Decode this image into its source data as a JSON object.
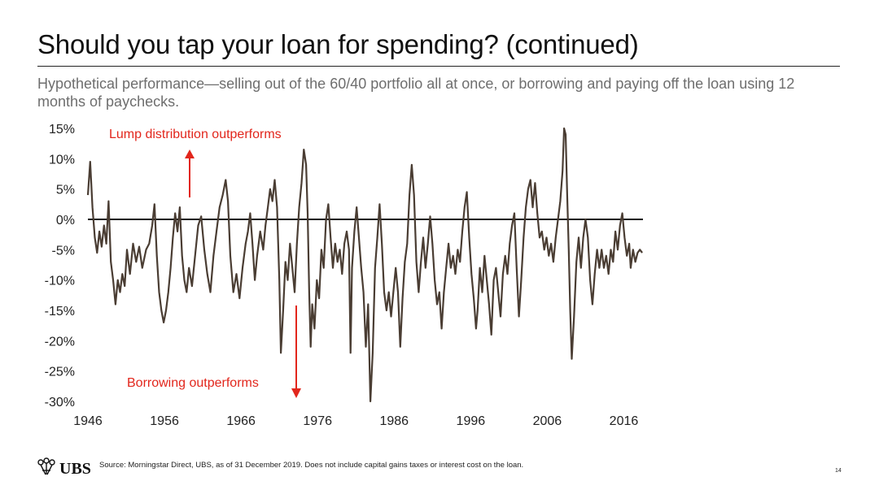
{
  "title": "Should you tap your loan for spending? (continued)",
  "subtitle": "Hypothetical performance—selling out of the 60/40 portfolio all at once, or borrowing and paying off the loan using 12 months of paychecks.",
  "footer": {
    "brand": "UBS",
    "source": "Source: Morningstar Direct, UBS, as of 31 December 2019. Does not include capital gains taxes or interest cost on the loan.",
    "page_number": "14"
  },
  "colors": {
    "series": "#4a3d33",
    "annotation": "#e2261c",
    "zero_line": "#111111"
  },
  "chart_data": {
    "type": "line",
    "title": "",
    "xlabel": "",
    "ylabel": "",
    "xlim": [
      1946,
      2018.5
    ],
    "ylim": [
      -30,
      15
    ],
    "y_ticks": [
      15,
      10,
      5,
      0,
      -5,
      -10,
      -15,
      -20,
      -25,
      -30
    ],
    "y_tick_labels": [
      "15%",
      "10%",
      "5%",
      "0%",
      "-5%",
      "-10%",
      "-15%",
      "-20%",
      "-25%",
      "-30%"
    ],
    "x_ticks": [
      1946,
      1956,
      1966,
      1976,
      1986,
      1996,
      2006,
      2016
    ],
    "x_tick_labels": [
      "1946",
      "1956",
      "1966",
      "1976",
      "1986",
      "1996",
      "2006",
      "2016"
    ],
    "reference_line": 0,
    "annotations": [
      {
        "text": "Lump distribution outperforms",
        "direction": "up"
      },
      {
        "text": "Borrowing outperforms",
        "direction": "down"
      }
    ],
    "series": [
      {
        "values": [
          [
            1946.0,
            4.0
          ],
          [
            1946.3,
            9.5
          ],
          [
            1946.6,
            2.0
          ],
          [
            1946.9,
            -3.0
          ],
          [
            1947.2,
            -5.5
          ],
          [
            1947.5,
            -2.0
          ],
          [
            1947.8,
            -4.5
          ],
          [
            1948.1,
            -1.0
          ],
          [
            1948.4,
            -4.0
          ],
          [
            1948.7,
            3.0
          ],
          [
            1949.0,
            -7.0
          ],
          [
            1949.3,
            -10.0
          ],
          [
            1949.6,
            -14.0
          ],
          [
            1949.9,
            -10.0
          ],
          [
            1950.2,
            -12.0
          ],
          [
            1950.5,
            -9.0
          ],
          [
            1950.8,
            -11.0
          ],
          [
            1951.1,
            -5.0
          ],
          [
            1951.5,
            -9.0
          ],
          [
            1951.9,
            -4.0
          ],
          [
            1952.3,
            -7.0
          ],
          [
            1952.7,
            -4.5
          ],
          [
            1953.1,
            -8.0
          ],
          [
            1953.6,
            -5.0
          ],
          [
            1954.0,
            -4.0
          ],
          [
            1954.4,
            -1.0
          ],
          [
            1954.7,
            2.5
          ],
          [
            1955.0,
            -6.0
          ],
          [
            1955.3,
            -12.0
          ],
          [
            1955.6,
            -15.0
          ],
          [
            1955.9,
            -17.0
          ],
          [
            1956.2,
            -15.0
          ],
          [
            1956.5,
            -12.0
          ],
          [
            1956.8,
            -8.0
          ],
          [
            1957.1,
            -3.0
          ],
          [
            1957.4,
            1.0
          ],
          [
            1957.7,
            -2.0
          ],
          [
            1958.0,
            2.0
          ],
          [
            1958.3,
            -6.0
          ],
          [
            1958.6,
            -10.0
          ],
          [
            1958.9,
            -12.0
          ],
          [
            1959.2,
            -8.0
          ],
          [
            1959.6,
            -11.0
          ],
          [
            1960.0,
            -6.0
          ],
          [
            1960.4,
            -1.0
          ],
          [
            1960.8,
            0.5
          ],
          [
            1961.2,
            -5.0
          ],
          [
            1961.6,
            -9.0
          ],
          [
            1962.0,
            -12.0
          ],
          [
            1962.4,
            -6.0
          ],
          [
            1962.8,
            -2.0
          ],
          [
            1963.2,
            2.0
          ],
          [
            1963.6,
            4.0
          ],
          [
            1964.0,
            6.5
          ],
          [
            1964.3,
            3.0
          ],
          [
            1964.6,
            -6.0
          ],
          [
            1965.0,
            -12.0
          ],
          [
            1965.4,
            -9.0
          ],
          [
            1965.8,
            -13.0
          ],
          [
            1966.2,
            -8.0
          ],
          [
            1966.6,
            -4.0
          ],
          [
            1966.9,
            -2.0
          ],
          [
            1967.2,
            1.0
          ],
          [
            1967.5,
            -4.0
          ],
          [
            1967.8,
            -10.0
          ],
          [
            1968.1,
            -6.0
          ],
          [
            1968.5,
            -2.0
          ],
          [
            1968.9,
            -5.0
          ],
          [
            1969.2,
            -1.0
          ],
          [
            1969.5,
            2.0
          ],
          [
            1969.8,
            5.0
          ],
          [
            1970.1,
            3.0
          ],
          [
            1970.4,
            6.5
          ],
          [
            1970.7,
            2.0
          ],
          [
            1971.0,
            -10.0
          ],
          [
            1971.2,
            -22.0
          ],
          [
            1971.5,
            -15.0
          ],
          [
            1971.8,
            -7.0
          ],
          [
            1972.1,
            -10.0
          ],
          [
            1972.4,
            -4.0
          ],
          [
            1972.7,
            -8.0
          ],
          [
            1973.0,
            -12.0
          ],
          [
            1973.3,
            -4.0
          ],
          [
            1973.6,
            2.0
          ],
          [
            1973.9,
            6.0
          ],
          [
            1974.2,
            11.5
          ],
          [
            1974.5,
            9.0
          ],
          [
            1974.7,
            1.0
          ],
          [
            1974.9,
            -12.0
          ],
          [
            1975.1,
            -21.0
          ],
          [
            1975.3,
            -14.0
          ],
          [
            1975.6,
            -18.0
          ],
          [
            1975.9,
            -10.0
          ],
          [
            1976.2,
            -13.0
          ],
          [
            1976.5,
            -5.0
          ],
          [
            1976.8,
            -8.0
          ],
          [
            1977.1,
            0.0
          ],
          [
            1977.4,
            2.5
          ],
          [
            1977.7,
            -3.0
          ],
          [
            1978.0,
            -8.0
          ],
          [
            1978.3,
            -4.0
          ],
          [
            1978.6,
            -7.0
          ],
          [
            1978.9,
            -5.0
          ],
          [
            1979.2,
            -9.0
          ],
          [
            1979.5,
            -4.0
          ],
          [
            1979.8,
            -2.0
          ],
          [
            1980.1,
            -5.0
          ],
          [
            1980.3,
            -22.0
          ],
          [
            1980.5,
            -8.0
          ],
          [
            1980.8,
            -2.0
          ],
          [
            1981.1,
            2.0
          ],
          [
            1981.4,
            -3.0
          ],
          [
            1981.7,
            -8.0
          ],
          [
            1982.0,
            -12.0
          ],
          [
            1982.3,
            -21.0
          ],
          [
            1982.6,
            -14.0
          ],
          [
            1982.9,
            -30.0
          ],
          [
            1983.2,
            -22.0
          ],
          [
            1983.5,
            -8.0
          ],
          [
            1983.8,
            -3.0
          ],
          [
            1984.1,
            2.5
          ],
          [
            1984.4,
            -4.0
          ],
          [
            1984.7,
            -12.0
          ],
          [
            1985.0,
            -15.0
          ],
          [
            1985.3,
            -12.0
          ],
          [
            1985.6,
            -16.0
          ],
          [
            1985.9,
            -12.0
          ],
          [
            1986.2,
            -8.0
          ],
          [
            1986.5,
            -12.0
          ],
          [
            1986.8,
            -21.0
          ],
          [
            1987.1,
            -13.0
          ],
          [
            1987.4,
            -7.0
          ],
          [
            1987.7,
            -4.0
          ],
          [
            1988.0,
            4.0
          ],
          [
            1988.3,
            9.0
          ],
          [
            1988.6,
            4.0
          ],
          [
            1988.9,
            -7.0
          ],
          [
            1989.2,
            -12.0
          ],
          [
            1989.5,
            -7.0
          ],
          [
            1989.8,
            -3.0
          ],
          [
            1990.1,
            -8.0
          ],
          [
            1990.4,
            -4.0
          ],
          [
            1990.7,
            0.5
          ],
          [
            1991.0,
            -4.0
          ],
          [
            1991.3,
            -10.0
          ],
          [
            1991.6,
            -14.0
          ],
          [
            1991.9,
            -12.0
          ],
          [
            1992.2,
            -18.0
          ],
          [
            1992.5,
            -12.0
          ],
          [
            1992.8,
            -8.0
          ],
          [
            1993.1,
            -4.0
          ],
          [
            1993.4,
            -8.0
          ],
          [
            1993.7,
            -6.0
          ],
          [
            1994.0,
            -9.0
          ],
          [
            1994.3,
            -5.0
          ],
          [
            1994.6,
            -7.0
          ],
          [
            1994.9,
            -2.0
          ],
          [
            1995.2,
            2.0
          ],
          [
            1995.5,
            4.5
          ],
          [
            1995.8,
            -3.0
          ],
          [
            1996.1,
            -9.0
          ],
          [
            1996.4,
            -13.0
          ],
          [
            1996.7,
            -18.0
          ],
          [
            1996.9,
            -15.0
          ],
          [
            1997.2,
            -8.0
          ],
          [
            1997.5,
            -12.0
          ],
          [
            1997.8,
            -6.0
          ],
          [
            1998.1,
            -10.0
          ],
          [
            1998.4,
            -14.0
          ],
          [
            1998.7,
            -19.0
          ],
          [
            1999.0,
            -10.0
          ],
          [
            1999.3,
            -8.0
          ],
          [
            1999.6,
            -12.0
          ],
          [
            1999.9,
            -16.0
          ],
          [
            2000.2,
            -9.0
          ],
          [
            2000.5,
            -6.0
          ],
          [
            2000.8,
            -9.0
          ],
          [
            2001.1,
            -4.0
          ],
          [
            2001.4,
            -1.0
          ],
          [
            2001.7,
            1.0
          ],
          [
            2002.0,
            -8.0
          ],
          [
            2002.3,
            -16.0
          ],
          [
            2002.6,
            -10.0
          ],
          [
            2002.9,
            -3.0
          ],
          [
            2003.2,
            2.0
          ],
          [
            2003.5,
            5.0
          ],
          [
            2003.8,
            6.5
          ],
          [
            2004.1,
            2.0
          ],
          [
            2004.4,
            6.0
          ],
          [
            2004.7,
            1.0
          ],
          [
            2005.0,
            -3.0
          ],
          [
            2005.3,
            -2.0
          ],
          [
            2005.6,
            -5.0
          ],
          [
            2005.9,
            -3.0
          ],
          [
            2006.2,
            -6.0
          ],
          [
            2006.5,
            -4.0
          ],
          [
            2006.8,
            -7.0
          ],
          [
            2007.1,
            -3.0
          ],
          [
            2007.4,
            0.0
          ],
          [
            2007.7,
            3.0
          ],
          [
            2008.0,
            8.0
          ],
          [
            2008.2,
            15.0
          ],
          [
            2008.4,
            14.0
          ],
          [
            2008.6,
            4.0
          ],
          [
            2008.8,
            -5.0
          ],
          [
            2009.0,
            -15.0
          ],
          [
            2009.2,
            -23.0
          ],
          [
            2009.5,
            -16.0
          ],
          [
            2009.8,
            -7.0
          ],
          [
            2010.1,
            -3.0
          ],
          [
            2010.4,
            -8.0
          ],
          [
            2010.7,
            -3.0
          ],
          [
            2011.0,
            0.0
          ],
          [
            2011.3,
            -3.0
          ],
          [
            2011.6,
            -10.0
          ],
          [
            2011.9,
            -14.0
          ],
          [
            2012.2,
            -9.0
          ],
          [
            2012.5,
            -5.0
          ],
          [
            2012.8,
            -8.0
          ],
          [
            2013.1,
            -5.0
          ],
          [
            2013.4,
            -8.0
          ],
          [
            2013.7,
            -6.0
          ],
          [
            2014.0,
            -9.0
          ],
          [
            2014.3,
            -5.0
          ],
          [
            2014.6,
            -7.0
          ],
          [
            2014.9,
            -2.0
          ],
          [
            2015.2,
            -5.0
          ],
          [
            2015.5,
            -1.0
          ],
          [
            2015.8,
            1.0
          ],
          [
            2016.1,
            -3.0
          ],
          [
            2016.4,
            -6.0
          ],
          [
            2016.7,
            -4.0
          ],
          [
            2016.9,
            -8.0
          ],
          [
            2017.2,
            -5.0
          ],
          [
            2017.5,
            -7.0
          ],
          [
            2017.8,
            -5.5
          ],
          [
            2018.1,
            -5.0
          ],
          [
            2018.4,
            -5.5
          ]
        ]
      }
    ]
  }
}
